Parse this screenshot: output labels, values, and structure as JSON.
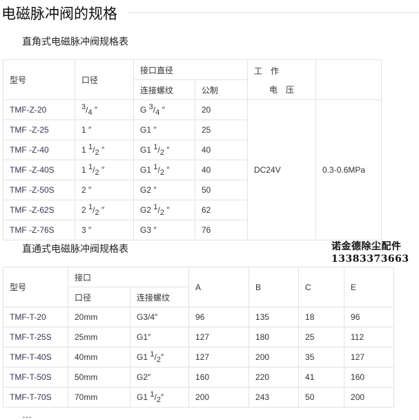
{
  "title": "电磁脉冲阀的规格",
  "table1": {
    "caption": "直角式电磁脉冲阀规格表",
    "h_model": "型号",
    "h_bore": "口径",
    "h_port": "接口直径",
    "h_thread": "连接螺纹",
    "h_metric": "公制",
    "h_voltage_1": "工　作",
    "h_voltage_2": "电　压",
    "voltage": "DC24V",
    "pressure": "0.3-0.6MPa",
    "rows": [
      {
        "model": "TMF-Z-20",
        "bore": {
          "pre": "",
          "num": "3",
          "den": "4",
          "post": " ″"
        },
        "thread": {
          "pre": "G ",
          "num": "3",
          "den": "4",
          "post": " ″"
        },
        "metric": "20"
      },
      {
        "model": "TMF -Z-25",
        "bore": {
          "pre": "1 ″"
        },
        "thread": {
          "pre": "G1 ″"
        },
        "metric": "25"
      },
      {
        "model": "TMF -Z-40",
        "bore": {
          "pre": "1 ",
          "num": "1",
          "den": "2",
          "post": " ″"
        },
        "thread": {
          "pre": "G1 ",
          "num": "1",
          "den": "2",
          "post": " ″"
        },
        "metric": "40"
      },
      {
        "model": "TMF -Z-40S",
        "bore": {
          "pre": "1 ",
          "num": "1",
          "den": "2",
          "post": " ″"
        },
        "thread": {
          "pre": "G1 ",
          "num": "1",
          "den": "2",
          "post": " ″"
        },
        "metric": "40"
      },
      {
        "model": "TMF -Z-50S",
        "bore": {
          "pre": "2 ″"
        },
        "thread": {
          "pre": "G2 ″"
        },
        "metric": "50"
      },
      {
        "model": "TMF -Z-62S",
        "bore": {
          "pre": "2 ",
          "num": "1",
          "den": "2",
          "post": " ″"
        },
        "thread": {
          "pre": "G2 ",
          "num": "1",
          "den": "2",
          "post": " ″"
        },
        "metric": "62"
      },
      {
        "model": "TMF -Z-76S",
        "bore": {
          "pre": "3 ″"
        },
        "thread": {
          "pre": "G3 ″"
        },
        "metric": "76"
      }
    ]
  },
  "table2": {
    "caption": "直通式电磁脉冲阀规格表",
    "h_model": "型号",
    "h_port": "接口",
    "h_bore": "口径",
    "h_thread": "连接螺纹",
    "h_a": "A",
    "h_b": "B",
    "h_c": "C",
    "h_e": "E",
    "rows": [
      {
        "model": "TMF-T-20",
        "bore": "20mm",
        "thread": {
          "pre": "G3/4″"
        },
        "a": "96",
        "b": "135",
        "c": "18",
        "e": "96"
      },
      {
        "model": "TMF-T-25S",
        "bore": "25mm",
        "thread": {
          "pre": "G1″"
        },
        "a": "127",
        "b": "180",
        "c": "25",
        "e": "112"
      },
      {
        "model": "TMF-T-40S",
        "bore": "40mm",
        "thread": {
          "pre": "G1 ",
          "num": "1",
          "den": "2",
          "post": "″"
        },
        "a": "127",
        "b": "200",
        "c": "35",
        "e": "127"
      },
      {
        "model": "TMF-T-50S",
        "bore": "50mm",
        "thread": {
          "pre": "G2″"
        },
        "a": "160",
        "b": "220",
        "c": "41",
        "e": "160"
      },
      {
        "model": "TMF-T-70S",
        "bore": "70mm",
        "thread": {
          "pre": "G1 ",
          "num": "1",
          "den": "2",
          "post": "″"
        },
        "a": "200",
        "b": "243",
        "c": "50",
        "e": "200"
      }
    ]
  },
  "watermark": {
    "line1": "诺金德除尘配件",
    "line2": "13383373663"
  },
  "next_caption": "…"
}
